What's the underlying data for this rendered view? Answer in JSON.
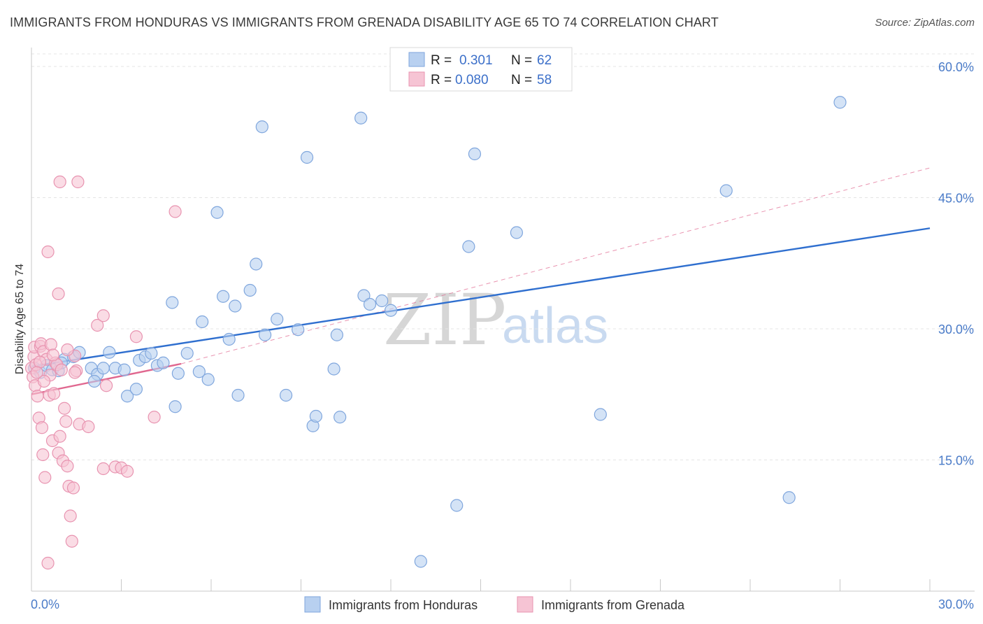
{
  "title": "IMMIGRANTS FROM HONDURAS VS IMMIGRANTS FROM GRENADA DISABILITY AGE 65 TO 74 CORRELATION CHART",
  "source": "Source: ZipAtlas.com",
  "watermark": {
    "zip": "ZIP",
    "atlas": "atlas"
  },
  "colors": {
    "blue_fill": "#b8d0f0",
    "blue_stroke": "#7fa6dd",
    "blue_line": "#2f6fcf",
    "pink_fill": "#f6c4d4",
    "pink_stroke": "#e893b0",
    "pink_line": "#e0678f",
    "tick_label": "#4a7bc8",
    "grid": "#e4e4e4"
  },
  "legend": {
    "rows": [
      {
        "r_label": "R =",
        "r_value": "0.301",
        "n_label": "N =",
        "n_value": "62"
      },
      {
        "r_label": "R =",
        "r_value": "0.080",
        "n_label": "N =",
        "n_value": "58"
      }
    ]
  },
  "bottom_legend": [
    "Immigrants from Honduras",
    "Immigrants from Grenada"
  ],
  "chart_data": {
    "type": "scatter",
    "title": "IMMIGRANTS FROM HONDURAS VS IMMIGRANTS FROM GRENADA DISABILITY AGE 65 TO 74 CORRELATION CHART",
    "xlabel": "",
    "ylabel": "Disability Age 65 to 74",
    "xlim": [
      0,
      30
    ],
    "ylim": [
      0,
      62
    ],
    "x_tick_labels": [
      "0.0%",
      "30.0%"
    ],
    "y_ticks": [
      15,
      30,
      45,
      60
    ],
    "y_tick_labels": [
      "15.0%",
      "30.0%",
      "45.0%",
      "60.0%"
    ],
    "series": [
      {
        "name": "Immigrants from Honduras",
        "R": 0.301,
        "N": 62,
        "trend": {
          "x": [
            0,
            30
          ],
          "y": [
            25.7,
            41.5
          ]
        },
        "points": [
          [
            0.1,
            25.5
          ],
          [
            0.3,
            25.0
          ],
          [
            0.5,
            25.8
          ],
          [
            0.7,
            25.3
          ],
          [
            0.9,
            25.2
          ],
          [
            1.1,
            26.5
          ],
          [
            1.4,
            26.8
          ],
          [
            1.6,
            27.3
          ],
          [
            2.0,
            25.5
          ],
          [
            2.2,
            24.8
          ],
          [
            2.4,
            25.5
          ],
          [
            2.6,
            27.3
          ],
          [
            2.8,
            25.5
          ],
          [
            3.1,
            25.3
          ],
          [
            3.2,
            22.3
          ],
          [
            3.5,
            23.1
          ],
          [
            3.6,
            26.4
          ],
          [
            3.8,
            26.8
          ],
          [
            4.0,
            27.2
          ],
          [
            4.2,
            25.8
          ],
          [
            4.4,
            26.1
          ],
          [
            4.7,
            33.0
          ],
          [
            4.9,
            24.9
          ],
          [
            5.2,
            27.2
          ],
          [
            5.6,
            25.1
          ],
          [
            5.7,
            30.8
          ],
          [
            5.9,
            24.2
          ],
          [
            6.2,
            43.3
          ],
          [
            6.4,
            33.7
          ],
          [
            6.6,
            28.8
          ],
          [
            6.8,
            32.6
          ],
          [
            6.9,
            22.4
          ],
          [
            7.3,
            34.4
          ],
          [
            7.5,
            37.4
          ],
          [
            7.7,
            53.1
          ],
          [
            7.8,
            29.3
          ],
          [
            8.2,
            31.1
          ],
          [
            8.5,
            22.4
          ],
          [
            8.9,
            29.9
          ],
          [
            9.2,
            49.6
          ],
          [
            9.4,
            18.9
          ],
          [
            9.5,
            20.0
          ],
          [
            10.1,
            25.4
          ],
          [
            10.2,
            29.3
          ],
          [
            10.3,
            19.9
          ],
          [
            11.0,
            54.1
          ],
          [
            11.1,
            33.8
          ],
          [
            11.3,
            32.8
          ],
          [
            11.7,
            33.2
          ],
          [
            12.0,
            32.1
          ],
          [
            13.0,
            3.4
          ],
          [
            14.2,
            9.8
          ],
          [
            14.6,
            39.4
          ],
          [
            14.8,
            50.0
          ],
          [
            16.2,
            41.0
          ],
          [
            19.0,
            20.2
          ],
          [
            23.2,
            45.8
          ],
          [
            25.3,
            10.7
          ],
          [
            27.0,
            55.9
          ],
          [
            2.1,
            24.0
          ],
          [
            4.8,
            21.1
          ],
          [
            1.0,
            26.1
          ]
        ]
      },
      {
        "name": "Immigrants from Grenada",
        "R": 0.08,
        "N": 58,
        "trend": {
          "x": [
            0,
            5
          ],
          "y": [
            22.5,
            26.0
          ]
        },
        "points": [
          [
            0.0,
            25.5
          ],
          [
            0.05,
            24.5
          ],
          [
            0.08,
            26.8
          ],
          [
            0.1,
            27.9
          ],
          [
            0.12,
            23.5
          ],
          [
            0.15,
            25.9
          ],
          [
            0.2,
            22.3
          ],
          [
            0.25,
            19.8
          ],
          [
            0.3,
            28.0
          ],
          [
            0.32,
            28.3
          ],
          [
            0.35,
            18.7
          ],
          [
            0.38,
            15.6
          ],
          [
            0.4,
            27.4
          ],
          [
            0.45,
            13.0
          ],
          [
            0.5,
            26.5
          ],
          [
            0.55,
            3.2
          ],
          [
            0.6,
            22.4
          ],
          [
            0.62,
            24.7
          ],
          [
            0.65,
            28.2
          ],
          [
            0.7,
            17.2
          ],
          [
            0.75,
            22.6
          ],
          [
            0.8,
            26.1
          ],
          [
            0.85,
            25.9
          ],
          [
            0.9,
            15.8
          ],
          [
            0.95,
            17.7
          ],
          [
            1.0,
            25.3
          ],
          [
            1.05,
            14.9
          ],
          [
            1.1,
            20.9
          ],
          [
            1.15,
            19.4
          ],
          [
            1.2,
            14.3
          ],
          [
            1.25,
            12.0
          ],
          [
            1.3,
            8.6
          ],
          [
            1.35,
            5.7
          ],
          [
            1.4,
            11.8
          ],
          [
            1.45,
            26.9
          ],
          [
            1.5,
            25.2
          ],
          [
            1.6,
            19.1
          ],
          [
            1.9,
            18.8
          ],
          [
            2.2,
            30.4
          ],
          [
            2.4,
            14.0
          ],
          [
            2.5,
            23.5
          ],
          [
            2.8,
            14.2
          ],
          [
            3.0,
            14.1
          ],
          [
            3.2,
            13.7
          ],
          [
            3.5,
            29.1
          ],
          [
            4.1,
            19.9
          ],
          [
            4.8,
            43.4
          ],
          [
            0.55,
            38.8
          ],
          [
            0.9,
            34.0
          ],
          [
            0.95,
            46.8
          ],
          [
            1.55,
            46.8
          ],
          [
            2.4,
            31.5
          ],
          [
            0.28,
            26.2
          ],
          [
            0.42,
            24.0
          ],
          [
            0.72,
            27.0
          ],
          [
            1.2,
            27.6
          ],
          [
            1.45,
            25.0
          ],
          [
            0.18,
            25.0
          ]
        ]
      }
    ]
  }
}
